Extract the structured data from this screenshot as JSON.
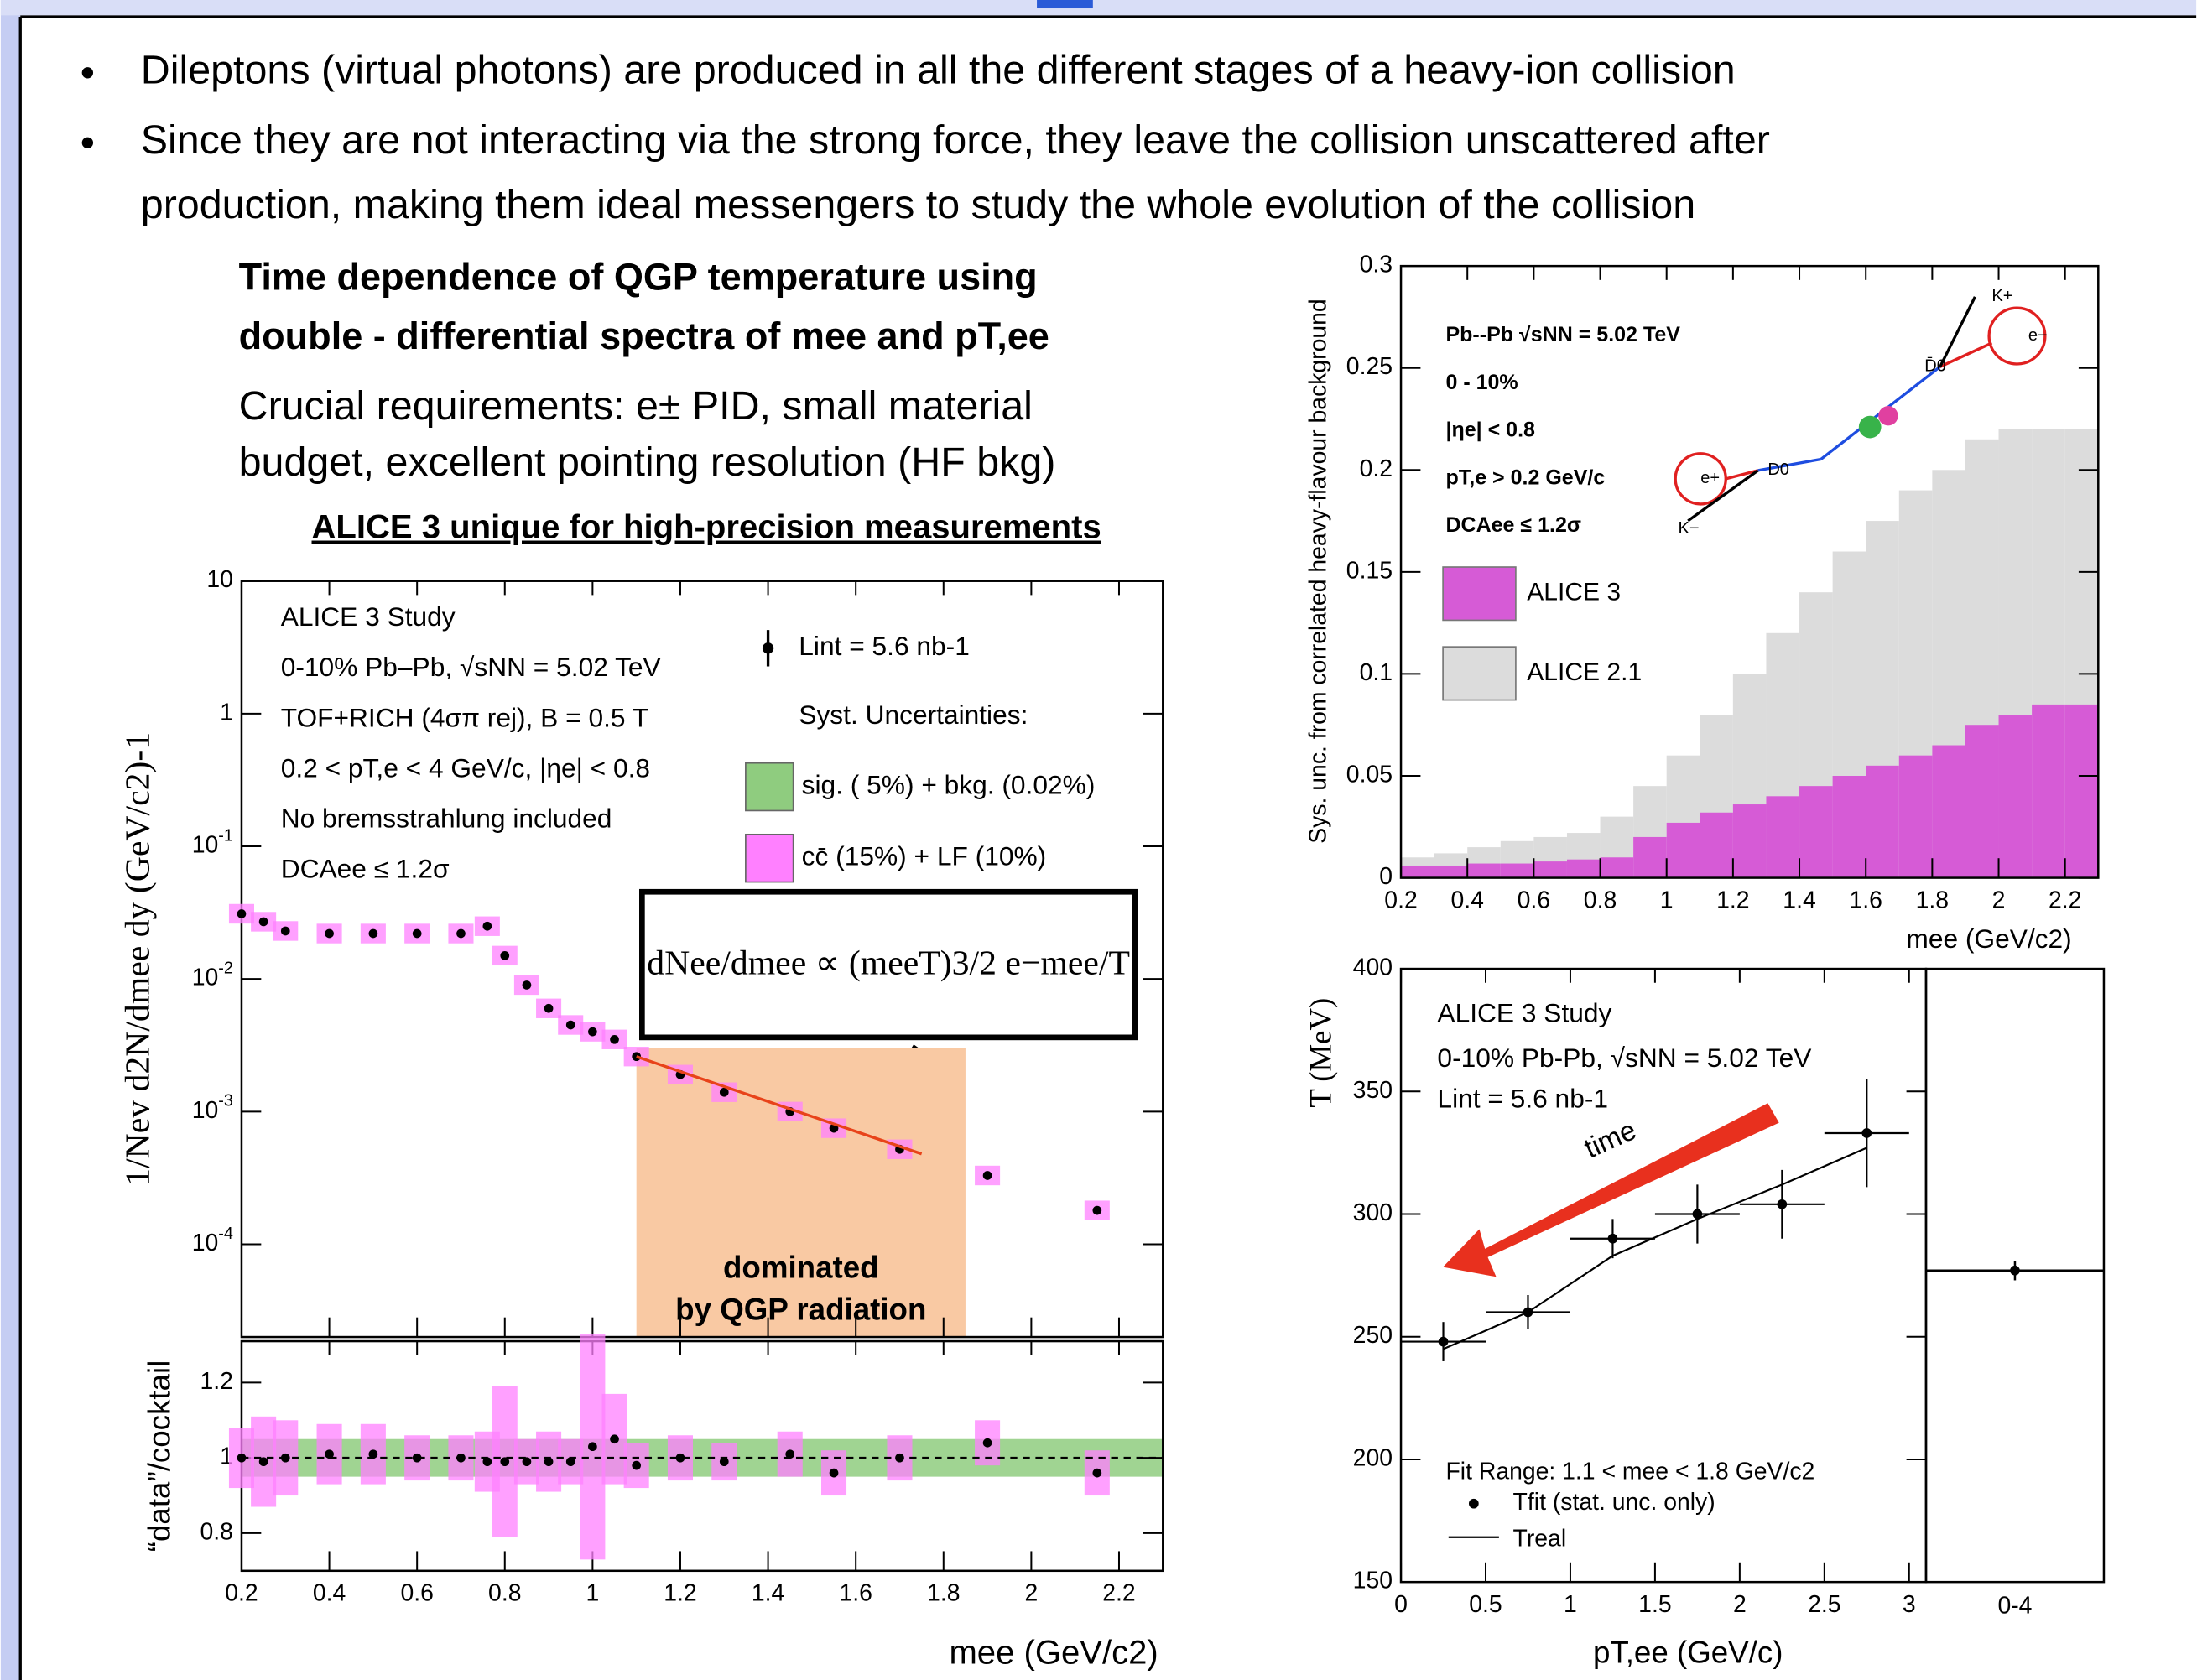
{
  "bullets": [
    [
      "Dileptons (virtual photons) are produced in all the different stages of a heavy-ion collision"
    ],
    [
      "Since they are not interacting via the strong force, they leave the collision unscattered after",
      "production, making them ideal messengers to study the whole evolution of the collision"
    ]
  ],
  "panel": {
    "heading": [
      "Time dependence of QGP temperature using",
      "double - differential spectra of mee and pT,ee"
    ],
    "requirements": [
      "Crucial requirements: e± PID,  small material",
      "budget, excellent pointing resolution (HF bkg)"
    ],
    "highlight": "ALICE 3 unique for high-precision measurements"
  },
  "chart_data": [
    {
      "type": "scatter",
      "log_y": true,
      "y_label": "1/Nev d2N/dmee dy  (GeV/c2)-1",
      "ylim": [
        2e-05,
        10
      ],
      "yticks": [
        {
          "value": 0.0001,
          "label": "10-4"
        },
        {
          "value": 0.001,
          "label": "10-3"
        },
        {
          "value": 0.01,
          "label": "10-2"
        },
        {
          "value": 0.1,
          "label": "10-1"
        },
        1,
        10
      ],
      "xlim": [
        0.2,
        2.3
      ],
      "xticks": [
        0.2,
        0.4,
        0.6,
        0.8,
        1,
        1.2,
        1.4,
        1.6,
        1.8,
        2,
        2.2
      ],
      "annotations": [
        "ALICE 3 Study",
        "0-10% Pb–Pb, √sNN = 5.02 TeV",
        "TOF+RICH (4σπ rej), B = 0.5 T",
        "0.2 < pT,e < 4 GeV/c, |ηe| < 0.8",
        "No bremsstrahlung included",
        "DCAee ≤ 1.2σ"
      ],
      "series": [
        {
          "name": "Lint = 5.6 nb-1",
          "color": "#000000",
          "syst_color": "#ff80ff",
          "x": [
            0.2,
            0.25,
            0.3,
            0.4,
            0.5,
            0.6,
            0.7,
            0.76,
            0.8,
            0.85,
            0.9,
            0.95,
            1.0,
            1.05,
            1.1,
            1.2,
            1.3,
            1.45,
            1.55,
            1.7,
            1.9,
            2.15
          ],
          "values": [
            0.031,
            0.027,
            0.023,
            0.022,
            0.022,
            0.022,
            0.022,
            0.025,
            0.015,
            0.009,
            0.006,
            0.0045,
            0.004,
            0.0035,
            0.0026,
            0.0019,
            0.0014,
            0.001,
            0.00075,
            0.00052,
            0.00033,
            0.00018
          ]
        }
      ],
      "legend": {
        "title": "Syst. Uncertainties:",
        "items": [
          {
            "label": "sig. ( 5%) + bkg. (0.02%)",
            "color": "#8fcc7f"
          },
          {
            "label": "cc̄ (15%) + LF (10%)",
            "color": "#ff80ff"
          }
        ]
      },
      "fit": {
        "color": "#e8431a",
        "x": [
          1.1,
          1.75
        ],
        "values": [
          0.0026,
          0.00048
        ]
      },
      "formula": "dNee/dmee ∝ (meeT)3/2 e−mee/T",
      "region": {
        "xlim": [
          1.1,
          1.85
        ],
        "top": 0.003,
        "color": "#f9c9a3",
        "labels": [
          "dominated",
          "by QGP radiation"
        ]
      }
    },
    {
      "type": "scatter",
      "y_label": "“data”/cocktail",
      "x_label": "mee (GeV/c2)",
      "ylim": [
        0.7,
        1.31
      ],
      "yticks": [
        0.8,
        1,
        1.2
      ],
      "xlim": [
        0.2,
        2.3
      ],
      "xticks": [
        0.2,
        0.4,
        0.6,
        0.8,
        1,
        1.2,
        1.4,
        1.6,
        1.8,
        2,
        2.2
      ],
      "reference_line": 1,
      "sig_band": 0.05,
      "sig_color": "#8fcc7f",
      "series": [
        {
          "color": "#000000",
          "syst_color": "#ff80ff",
          "x": [
            0.2,
            0.25,
            0.3,
            0.4,
            0.5,
            0.6,
            0.7,
            0.76,
            0.8,
            0.85,
            0.9,
            0.95,
            1.0,
            1.05,
            1.1,
            1.2,
            1.3,
            1.45,
            1.55,
            1.7,
            1.9,
            2.15
          ],
          "values": [
            1,
            0.99,
            1,
            1.01,
            1.01,
            1,
            1,
            0.99,
            0.99,
            0.99,
            0.99,
            0.99,
            1.03,
            1.05,
            0.98,
            1.0,
            0.99,
            1.01,
            0.96,
            1.0,
            1.04,
            0.96
          ],
          "syst": [
            0.08,
            0.12,
            0.1,
            0.08,
            0.08,
            0.06,
            0.06,
            0.08,
            0.2,
            0.06,
            0.08,
            0.06,
            0.3,
            0.12,
            0.06,
            0.06,
            0.05,
            0.06,
            0.06,
            0.06,
            0.06,
            0.06
          ]
        }
      ]
    },
    {
      "type": "histogram",
      "y_label": "Sys. unc. from correlated heavy-flavour background",
      "x_label": "mee (GeV/c2)",
      "ylim": [
        0,
        0.3
      ],
      "yticks": [
        0,
        0.05,
        0.1,
        0.15,
        0.2,
        0.25,
        0.3
      ],
      "xlim": [
        0.2,
        2.3
      ],
      "xticks": [
        0.2,
        0.4,
        0.6,
        0.8,
        1,
        1.2,
        1.4,
        1.6,
        1.8,
        2,
        2.2
      ],
      "annotations": [
        "Pb--Pb √sNN = 5.02 TeV",
        "0 - 10%",
        "|ηe| < 0.8",
        "pT,e > 0.2 GeV/c",
        "DCAee ≤ 1.2σ"
      ],
      "diagram_labels": [
        "K+",
        "e−",
        "D̄0",
        "e+",
        "D0",
        "K−"
      ],
      "bins": [
        0.2,
        0.3,
        0.4,
        0.5,
        0.6,
        0.7,
        0.8,
        0.9,
        1.0,
        1.1,
        1.2,
        1.3,
        1.4,
        1.5,
        1.6,
        1.7,
        1.8,
        1.9,
        2.0,
        2.1,
        2.2,
        2.3
      ],
      "series": [
        {
          "name": "ALICE 3",
          "color": "#d65bd6",
          "values": [
            0.006,
            0.006,
            0.007,
            0.007,
            0.008,
            0.009,
            0.01,
            0.02,
            0.027,
            0.032,
            0.036,
            0.04,
            0.045,
            0.05,
            0.055,
            0.06,
            0.065,
            0.075,
            0.08,
            0.085,
            0.085
          ]
        },
        {
          "name": "ALICE 2.1",
          "color": "#dcdcdc",
          "values": [
            0.01,
            0.012,
            0.015,
            0.018,
            0.02,
            0.022,
            0.03,
            0.045,
            0.06,
            0.08,
            0.1,
            0.12,
            0.14,
            0.16,
            0.175,
            0.19,
            0.2,
            0.215,
            0.22,
            0.22,
            0.22
          ]
        }
      ]
    },
    {
      "type": "errorbar",
      "y_label": "T (MeV)",
      "x_label": "pT,ee (GeV/c)",
      "ylim": [
        150,
        400
      ],
      "yticks": [
        150,
        200,
        250,
        300,
        350,
        400
      ],
      "xlim": [
        0,
        3.1
      ],
      "xticks": [
        0,
        0.5,
        1,
        1.5,
        2,
        2.5,
        3
      ],
      "annotations": [
        "ALICE 3 Study",
        "0-10% Pb-Pb, √sNN = 5.02 TeV",
        "Lint = 5.6 nb-1",
        "Fit Range: 1.1 < mee < 1.8 GeV/c2"
      ],
      "arrow_label": "time",
      "series": [
        {
          "name": "Tfit (stat. unc. only)",
          "style": "points",
          "color": "#000000",
          "x": [
            0.25,
            0.75,
            1.25,
            1.75,
            2.25,
            2.75
          ],
          "values": [
            248,
            260,
            290,
            300,
            304,
            333
          ],
          "errors": [
            8,
            7,
            8,
            12,
            14,
            22
          ],
          "xerr": 0.25
        },
        {
          "name": "Treal",
          "style": "line",
          "color": "#000000",
          "x": [
            0.25,
            0.75,
            1.25,
            1.75,
            2.25,
            2.75
          ],
          "values": [
            245,
            260,
            283,
            298,
            312,
            327
          ]
        }
      ]
    },
    {
      "type": "errorbar",
      "ylim": [
        150,
        400
      ],
      "categories": [
        "0-4"
      ],
      "values": [
        277
      ],
      "errors": [
        4
      ],
      "color": "#000000"
    }
  ]
}
